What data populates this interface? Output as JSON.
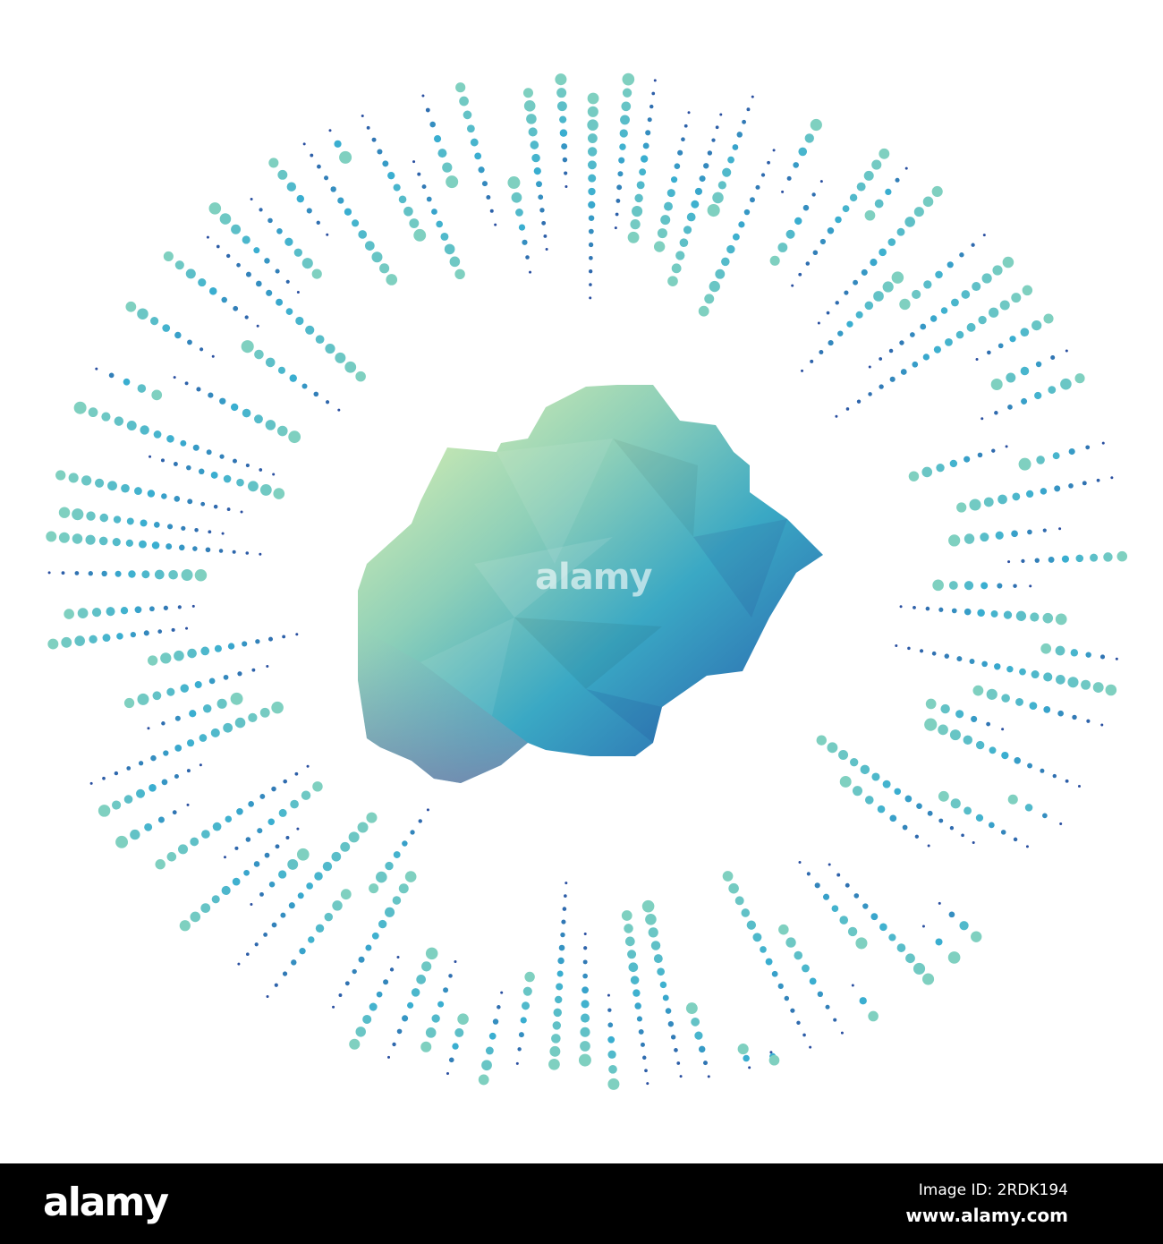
{
  "watermark": {
    "center_text": "alamy",
    "logo": "alamy"
  },
  "footer": {
    "image_id": "Image ID: 2RDK194",
    "site": "www.alamy.com"
  },
  "colors": {
    "light": "#7fd0c0",
    "mid": "#3aaed0",
    "dark": "#2a4fa0",
    "island_top": "#e8f5b0",
    "island_mid": "#3ab0c0",
    "island_bottom": "#2a5fb0",
    "island_side": "#9a9ab8"
  }
}
